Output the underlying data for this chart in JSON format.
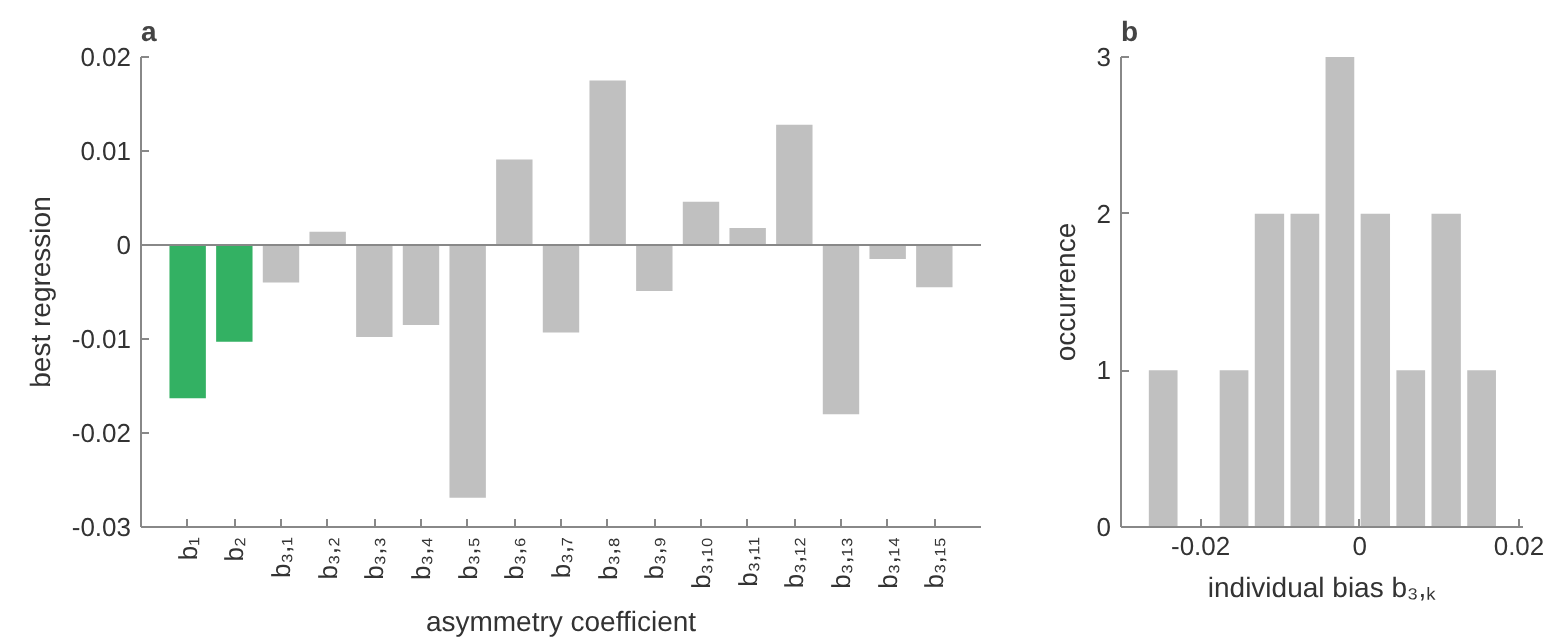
{
  "chart_data": [
    {
      "type": "bar",
      "title": "a",
      "xlabel": "asymmetry coefficient",
      "ylabel": "best regression",
      "categories": [
        "b₁",
        "b₂",
        "b₃,₁",
        "b₃,₂",
        "b₃,₃",
        "b₃,₄",
        "b₃,₅",
        "b₃,₆",
        "b₃,₇",
        "b₃,₈",
        "b₃,₉",
        "b₃,₁₀",
        "b₃,₁₁",
        "b₃,₁₂",
        "b₃,₁₃",
        "b₃,₁₄",
        "b₃,₁₅"
      ],
      "values": [
        -0.0163,
        -0.0103,
        -0.004,
        0.0014,
        -0.0098,
        -0.0085,
        -0.0269,
        0.0091,
        -0.0093,
        0.0175,
        -0.0049,
        0.0046,
        0.0018,
        0.0128,
        -0.018,
        -0.0015,
        -0.0045
      ],
      "colors": [
        "#33b163",
        "#33b163",
        "#c0c0c0",
        "#c0c0c0",
        "#c0c0c0",
        "#c0c0c0",
        "#c0c0c0",
        "#c0c0c0",
        "#c0c0c0",
        "#c0c0c0",
        "#c0c0c0",
        "#c0c0c0",
        "#c0c0c0",
        "#c0c0c0",
        "#c0c0c0",
        "#c0c0c0",
        "#c0c0c0"
      ],
      "ylim": [
        -0.03,
        0.02
      ],
      "yticks": [
        -0.03,
        -0.02,
        -0.01,
        0,
        0.01,
        0.02
      ],
      "ref_lines": [
        {
          "axis": "y",
          "value": 0,
          "label": null,
          "color": "#888888"
        }
      ],
      "grid": false
    },
    {
      "type": "histogram",
      "title": "b",
      "xlabel": "individual bias b₃,ₖ",
      "ylabel": "occurrence",
      "bins": [
        -0.0269,
        -0.0225,
        -0.018,
        -0.0136,
        -0.0091,
        -0.0047,
        -0.0003,
        0.0042,
        0.0086,
        0.0131,
        0.0175
      ],
      "values": [
        1,
        0,
        1,
        2,
        2,
        3,
        2,
        1,
        2,
        1
      ],
      "color": "#c0c0c0",
      "xlim": [
        -0.03,
        0.0205
      ],
      "xticks": [
        -0.02,
        0,
        0.02
      ],
      "ylim": [
        0,
        3
      ],
      "yticks": [
        0,
        1,
        2,
        3
      ],
      "grid": false
    }
  ]
}
